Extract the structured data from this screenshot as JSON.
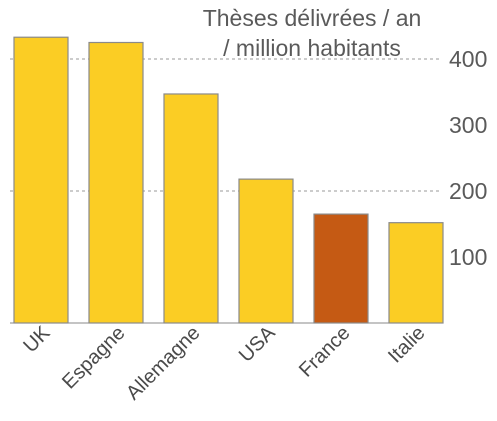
{
  "chart_data": {
    "type": "bar",
    "title_line1": "Thèses délivrées / an",
    "title_line2": "/ million habitants",
    "categories": [
      "UK",
      "Espagne",
      "Allemagne",
      "USA",
      "France",
      "Italie"
    ],
    "values": [
      433,
      425,
      347,
      218,
      165,
      152
    ],
    "ylim": [
      0,
      440
    ],
    "yticks": [
      100,
      200,
      300,
      400
    ],
    "ytick_labels": [
      "100",
      "200",
      "300",
      "400"
    ],
    "grid": "dashed at 200 and 400",
    "colors": {
      "default": "#fbcd24",
      "highlight": "#c55a14"
    },
    "highlight_category": "France"
  }
}
